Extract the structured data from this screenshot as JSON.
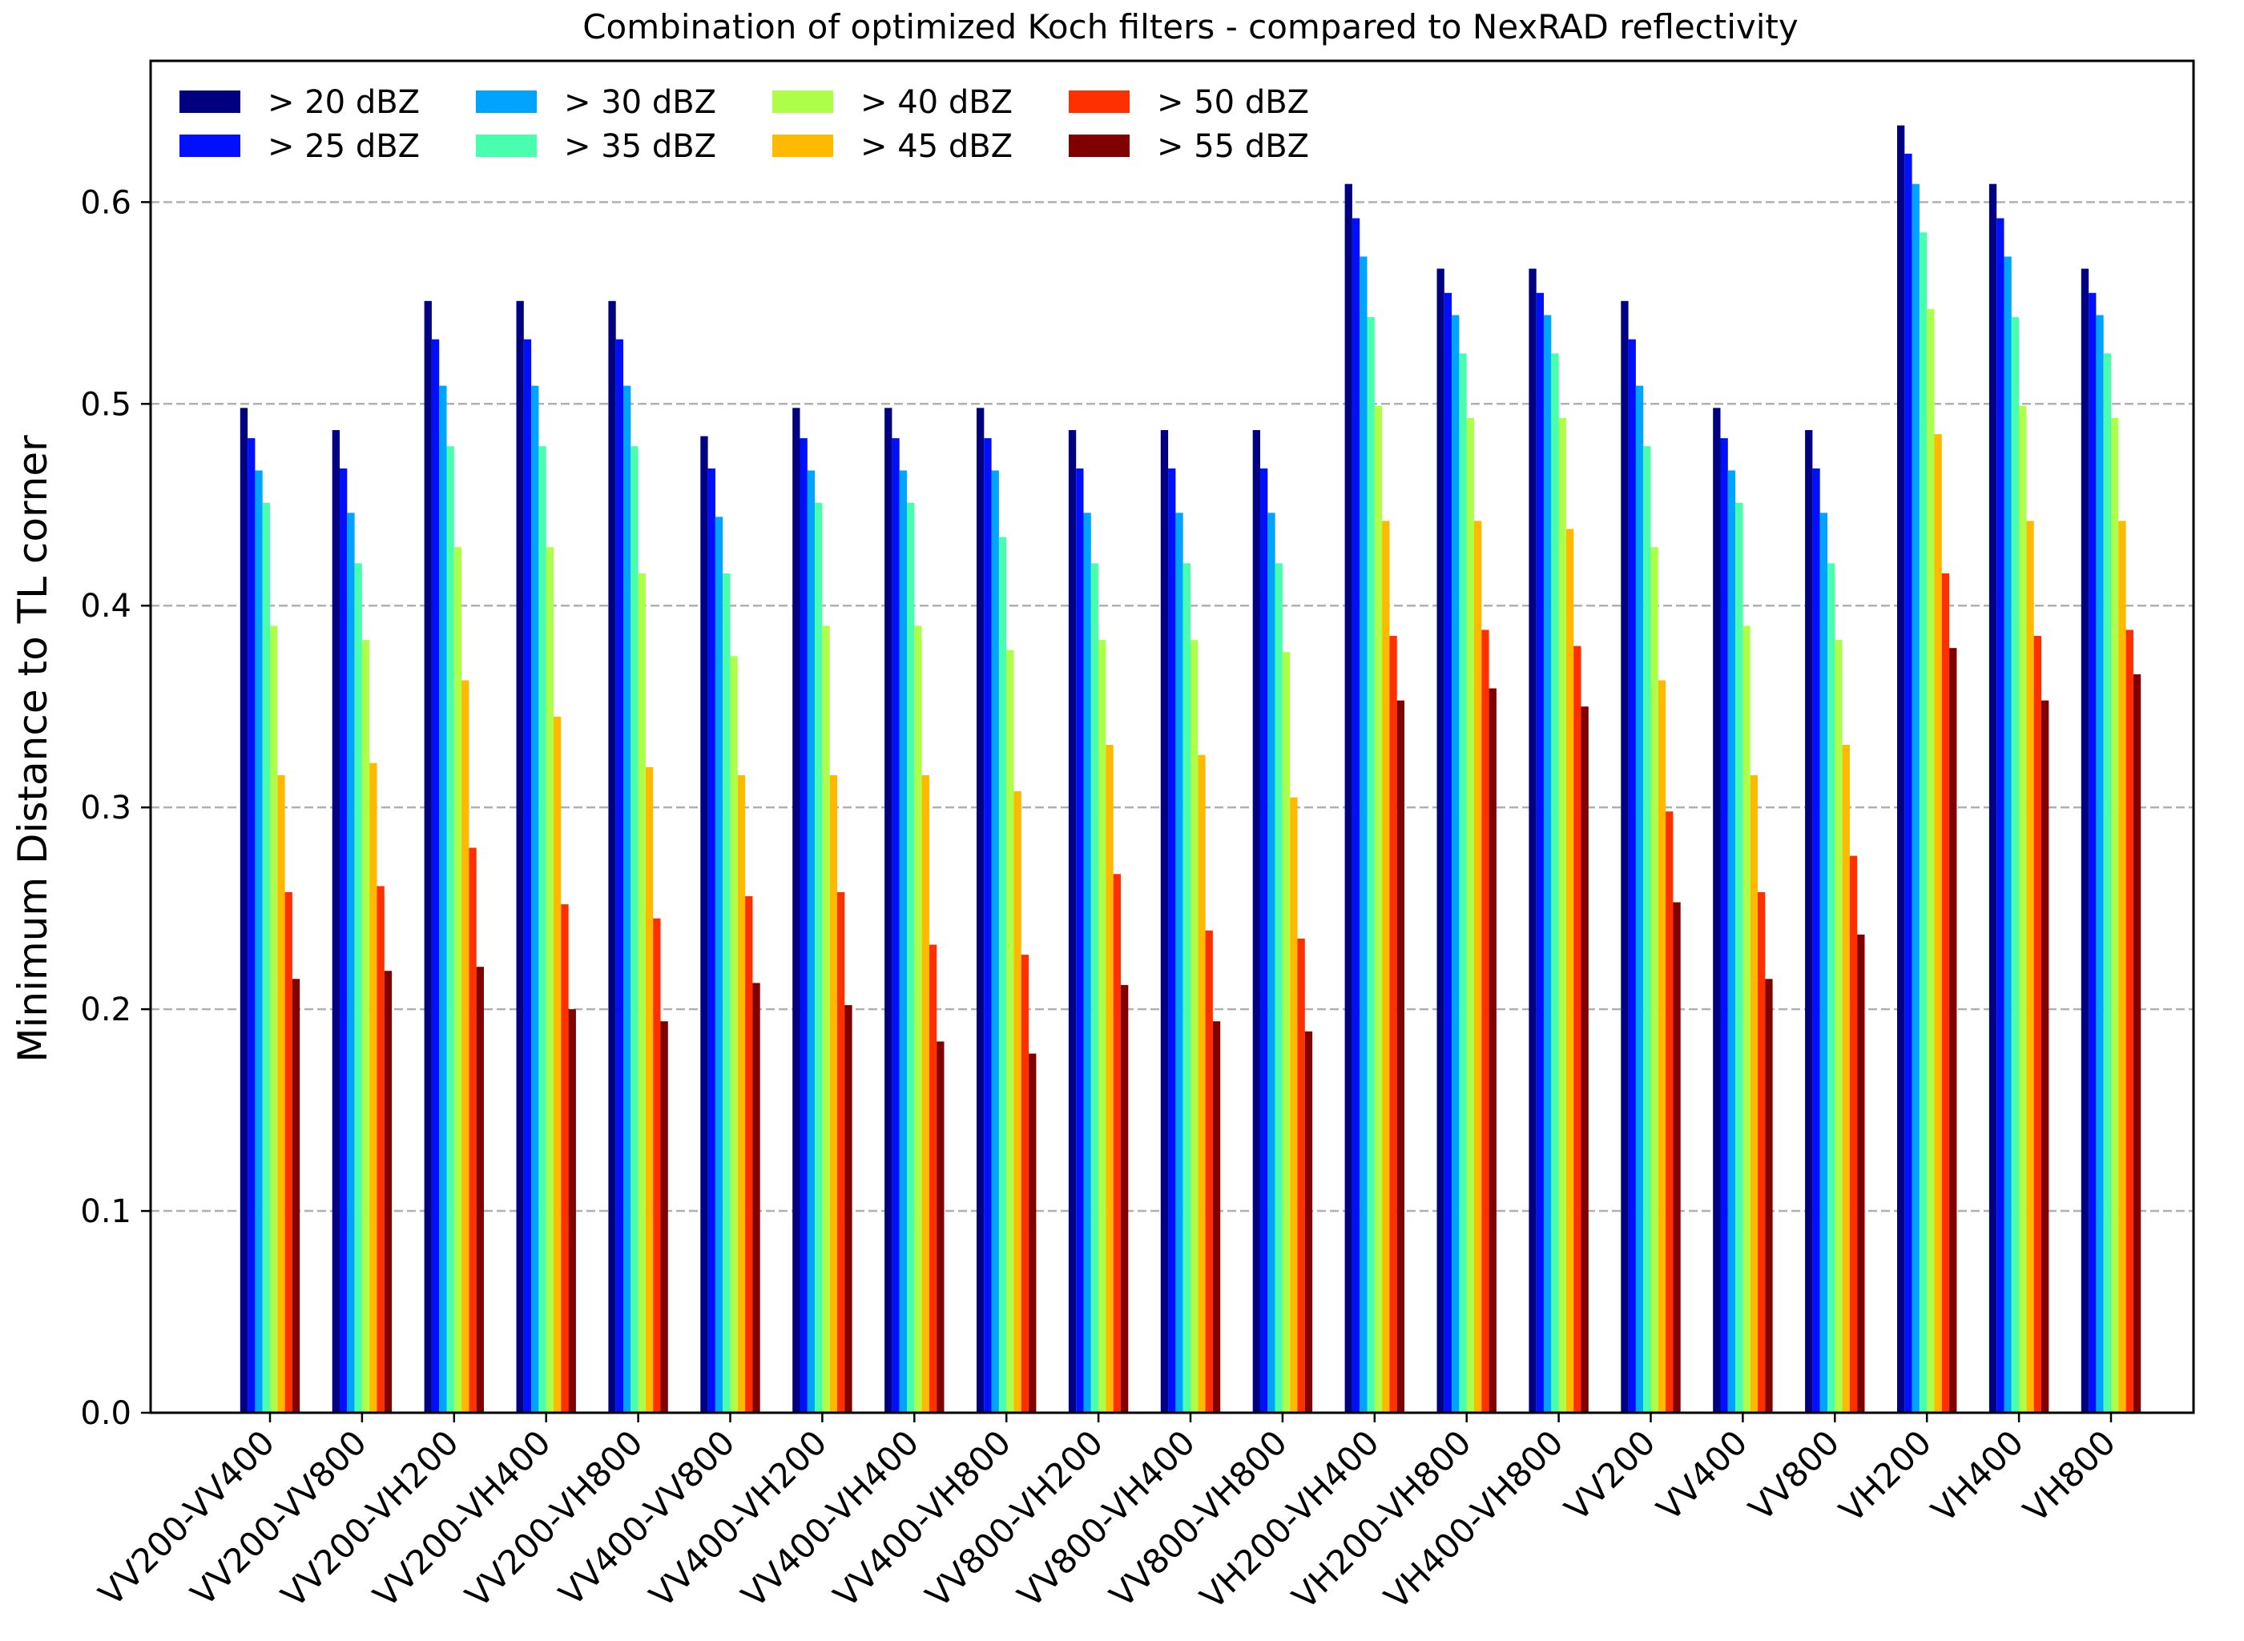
{
  "chart_data": {
    "type": "bar",
    "title": "Combination of optimized Koch filters - compared to NexRAD reflectivity",
    "xlabel": "",
    "ylabel": "Minimum Distance to TL corner",
    "ylim": [
      0,
      0.67
    ],
    "yticks": [
      0.0,
      0.1,
      0.2,
      0.3,
      0.4,
      0.5,
      0.6
    ],
    "ytick_labels": [
      "0.0",
      "0.1",
      "0.2",
      "0.3",
      "0.4",
      "0.5",
      "0.6"
    ],
    "grid": "horizontal dashed",
    "legend_position": "top-left",
    "legend_columns": 4,
    "categories": [
      "VV200-VV400",
      "VV200-VV800",
      "VV200-VH200",
      "VV200-VH400",
      "VV200-VH800",
      "VV400-VV800",
      "VV400-VH200",
      "VV400-VH400",
      "VV400-VH800",
      "VV800-VH200",
      "VV800-VH400",
      "VV800-VH800",
      "VH200-VH400",
      "VH200-VH800",
      "VH400-VH800",
      "VV200",
      "VV400",
      "VV800",
      "VH200",
      "VH400",
      "VH800"
    ],
    "series": [
      {
        "name": "> 20 dBZ",
        "color": "#000080",
        "values": [
          0.498,
          0.487,
          0.551,
          0.551,
          0.551,
          0.484,
          0.498,
          0.498,
          0.498,
          0.487,
          0.487,
          0.487,
          0.609,
          0.567,
          0.567,
          0.551,
          0.498,
          0.487,
          0.638,
          0.609,
          0.567
        ]
      },
      {
        "name": "> 25 dBZ",
        "color": "#0010ff",
        "values": [
          0.483,
          0.468,
          0.532,
          0.532,
          0.532,
          0.468,
          0.483,
          0.483,
          0.483,
          0.468,
          0.468,
          0.468,
          0.592,
          0.555,
          0.555,
          0.532,
          0.483,
          0.468,
          0.624,
          0.592,
          0.555
        ]
      },
      {
        "name": "> 30 dBZ",
        "color": "#00a4ff",
        "values": [
          0.467,
          0.446,
          0.509,
          0.509,
          0.509,
          0.444,
          0.467,
          0.467,
          0.467,
          0.446,
          0.446,
          0.446,
          0.573,
          0.544,
          0.544,
          0.509,
          0.467,
          0.446,
          0.609,
          0.573,
          0.544
        ]
      },
      {
        "name": "> 35 dBZ",
        "color": "#49ffad",
        "values": [
          0.451,
          0.421,
          0.479,
          0.479,
          0.479,
          0.416,
          0.451,
          0.451,
          0.434,
          0.421,
          0.421,
          0.421,
          0.543,
          0.525,
          0.525,
          0.479,
          0.451,
          0.421,
          0.585,
          0.543,
          0.525
        ]
      },
      {
        "name": "> 40 dBZ",
        "color": "#adff49",
        "values": [
          0.39,
          0.383,
          0.429,
          0.429,
          0.416,
          0.375,
          0.39,
          0.39,
          0.378,
          0.383,
          0.383,
          0.377,
          0.499,
          0.493,
          0.493,
          0.429,
          0.39,
          0.383,
          0.547,
          0.499,
          0.493
        ]
      },
      {
        "name": "> 45 dBZ",
        "color": "#ffb900",
        "values": [
          0.316,
          0.322,
          0.363,
          0.345,
          0.32,
          0.316,
          0.316,
          0.316,
          0.308,
          0.331,
          0.326,
          0.305,
          0.442,
          0.442,
          0.438,
          0.363,
          0.316,
          0.331,
          0.485,
          0.442,
          0.442
        ]
      },
      {
        "name": "> 50 dBZ",
        "color": "#ff3000",
        "values": [
          0.258,
          0.261,
          0.28,
          0.252,
          0.245,
          0.256,
          0.258,
          0.232,
          0.227,
          0.267,
          0.239,
          0.235,
          0.385,
          0.388,
          0.38,
          0.298,
          0.258,
          0.276,
          0.416,
          0.385,
          0.388
        ]
      },
      {
        "name": "> 55 dBZ",
        "color": "#800000",
        "values": [
          0.215,
          0.219,
          0.221,
          0.2,
          0.194,
          0.213,
          0.202,
          0.184,
          0.178,
          0.212,
          0.194,
          0.189,
          0.353,
          0.359,
          0.35,
          0.253,
          0.215,
          0.237,
          0.379,
          0.353,
          0.366
        ]
      }
    ]
  }
}
